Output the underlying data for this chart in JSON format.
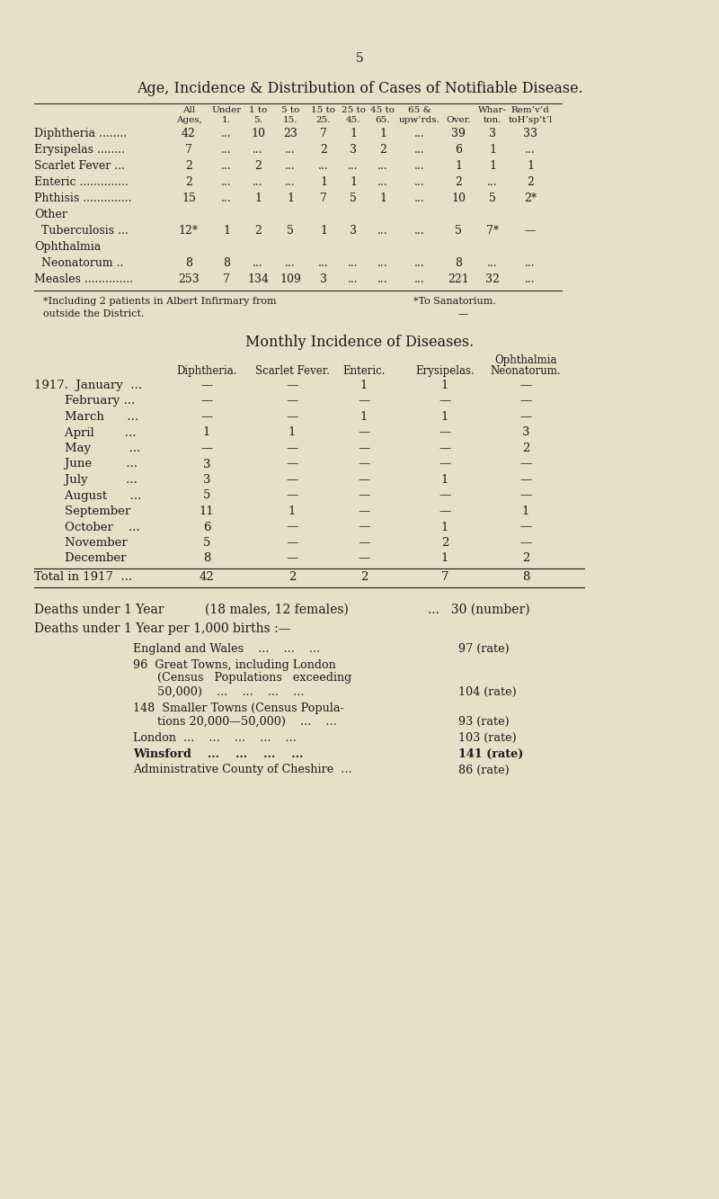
{
  "bg_color": "#e8dfc8",
  "text_color": "#1a1a1a",
  "page_number": "5",
  "title1": "Age, Incidence & Distribution of Cases of Notifiable Disease.",
  "table1_col_headers_1": [
    "All",
    "Under",
    "1 to",
    "5 to",
    "15 to",
    "25 to",
    "45 to",
    "65 &",
    "",
    "Whar-",
    "Rem’v’d"
  ],
  "table1_col_headers_2": [
    "Ages,",
    "1.",
    "5.",
    "15.",
    "25.",
    "45.",
    "65.",
    "upw’rds.",
    "Over.",
    "ton.",
    "toH’sp’t’l"
  ],
  "table1_rows": [
    [
      "Diphtheria ........",
      "42",
      "...",
      "10",
      "23",
      "7",
      "1",
      "1",
      "...",
      "39",
      "3",
      "33"
    ],
    [
      "Erysipelas ........",
      "7",
      "...",
      "...",
      "...",
      "2",
      "3",
      "2",
      "...",
      "6",
      "1",
      "..."
    ],
    [
      "Scarlet Fever ...",
      "2",
      "...",
      "2",
      "...",
      "...",
      "...",
      "...",
      "...",
      "1",
      "1",
      "1"
    ],
    [
      "Enteric ..............",
      "2",
      "...",
      "...",
      "...",
      "1",
      "1",
      "...",
      "...",
      "2",
      "...",
      "2"
    ],
    [
      "Phthisis ..............",
      "15",
      "...",
      "1",
      "1",
      "7",
      "5",
      "1",
      "...",
      "10",
      "5",
      "2*"
    ],
    [
      "Other",
      "",
      "",
      "",
      "",
      "",
      "",
      "",
      "",
      "",
      "",
      ""
    ],
    [
      "  Tuberculosis ...",
      "12*",
      "1",
      "2",
      "5",
      "1",
      "3",
      "...",
      "...",
      "5",
      "7*",
      "—"
    ],
    [
      "Ophthalmia",
      "",
      "",
      "",
      "",
      "",
      "",
      "",
      "",
      "",
      "",
      ""
    ],
    [
      "  Neonatorum ..",
      "8",
      "8",
      "...",
      "...",
      "...",
      "...",
      "...",
      "...",
      "8",
      "...",
      "..."
    ],
    [
      "Measles ..............",
      "253",
      "7",
      "134",
      "109",
      "3",
      "...",
      "...",
      "...",
      "221",
      "32",
      "..."
    ]
  ],
  "footnote1a": "*Including 2 patients in Albert Infirmary from",
  "footnote1b": "*To Sanatorium.",
  "footnote2": "outside the District.",
  "footnote_dash": "—",
  "title2": "Monthly Incidence of Diseases.",
  "table2_col_labels": [
    "Diphtheria.",
    "Scarlet Fever.",
    "Enteric.",
    "Erysipelas.",
    "Neonatorum."
  ],
  "table2_ophthalmia": "Ophthalmia",
  "table2_rows": [
    [
      "1917.  January  ...",
      "—",
      "—",
      "1",
      "1",
      "—"
    ],
    [
      "        February ...",
      "—",
      "—",
      "—",
      "—",
      "—"
    ],
    [
      "        March      ...",
      "—",
      "—",
      "1",
      "1",
      "—"
    ],
    [
      "        April        ...",
      "1",
      "1",
      "—",
      "—",
      "3"
    ],
    [
      "        May          ...",
      "—",
      "—",
      "—",
      "—",
      "2"
    ],
    [
      "        June         ...",
      "3",
      "—",
      "—",
      "—",
      "—"
    ],
    [
      "        July          ...",
      "3",
      "—",
      "—",
      "1",
      "—"
    ],
    [
      "        August      ...",
      "5",
      "—",
      "—",
      "—",
      "—"
    ],
    [
      "        September",
      "11",
      "1",
      "—",
      "—",
      "1"
    ],
    [
      "        October    ...",
      "6",
      "—",
      "—",
      "1",
      "—"
    ],
    [
      "        November",
      "5",
      "—",
      "—",
      "2",
      "—"
    ],
    [
      "        December",
      "8",
      "—",
      "—",
      "1",
      "2"
    ]
  ],
  "table2_total": [
    "Total in 1917  ...",
    "42",
    "2",
    "2",
    "7",
    "8"
  ],
  "deaths_line1_a": "Deaths under 1 Year",
  "deaths_line1_b": "(18 males, 12 females)",
  "deaths_line1_c": "...   30 (number)",
  "deaths_line2": "Deaths under 1 Year per 1,000 births :—",
  "deaths_indent1": "England and Wales    ...    ...    ...",
  "deaths_val1": "97 (rate)",
  "deaths_indent2a": "96  Great Towns, including London",
  "deaths_indent2b": "(Census   Populations   exceeding",
  "deaths_indent2c": "50,000)    ...    ...    ...    ...",
  "deaths_val2": "104 (rate)",
  "deaths_indent3a": "148  Smaller Towns (Census Popula-",
  "deaths_indent3b": "tions 20,000—50,000)    ...    ...",
  "deaths_val3": "93 (rate)",
  "deaths_indent4": "London  ...    ...    ...    ...    ...",
  "deaths_val4": "103 (rate)",
  "deaths_indent5": "Winsford    ...    ...    ...    ...",
  "deaths_val5": "141 (rate)",
  "deaths_indent6": "Administrative County of Cheshire  ...",
  "deaths_val6": "86 (rate)"
}
